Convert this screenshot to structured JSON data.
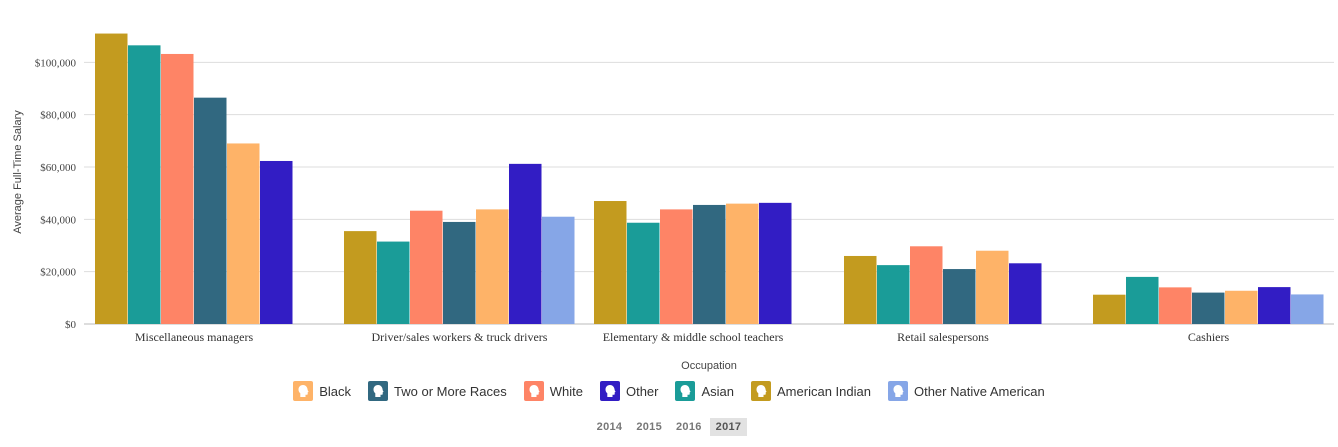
{
  "chart_data": {
    "type": "bar",
    "title": "",
    "xlabel": "Occupation",
    "ylabel": "Average Full-Time Salary",
    "ylim": [
      0,
      120000
    ],
    "yticks": [
      0,
      20000,
      40000,
      60000,
      80000,
      100000
    ],
    "ytick_labels": [
      "$0",
      "$20,000",
      "$40,000",
      "$60,000",
      "$80,000",
      "$100,000"
    ],
    "grid": true,
    "legend_position": "bottom-center",
    "categories": [
      "Miscellaneous managers",
      "Driver/sales workers & truck drivers",
      "Elementary & middle school teachers",
      "Retail salespersons",
      "Cashiers"
    ],
    "bar_order": [
      "American Indian",
      "Asian",
      "White",
      "Two or More Races",
      "Black",
      "Other",
      "Other Native American"
    ],
    "series": [
      {
        "name": "American Indian",
        "color": "#c39b1f",
        "values": [
          111000,
          35500,
          47000,
          26000,
          11200
        ]
      },
      {
        "name": "Asian",
        "color": "#1a9c98",
        "values": [
          106500,
          31500,
          38700,
          22500,
          18000
        ]
      },
      {
        "name": "White",
        "color": "#fe8466",
        "values": [
          103200,
          43300,
          43800,
          29700,
          14000
        ]
      },
      {
        "name": "Two or More Races",
        "color": "#316880",
        "values": [
          86500,
          39000,
          45500,
          21000,
          12000
        ]
      },
      {
        "name": "Black",
        "color": "#feb368",
        "values": [
          69000,
          43800,
          46000,
          28000,
          12700
        ]
      },
      {
        "name": "Other",
        "color": "#321dc4",
        "values": [
          62300,
          61200,
          46300,
          23200,
          14100
        ]
      },
      {
        "name": "Other Native American",
        "color": "#86a6e7",
        "values": [
          null,
          41000,
          null,
          null,
          11300
        ]
      }
    ]
  },
  "legend": {
    "items": [
      {
        "label": "Black",
        "color": "#feb368"
      },
      {
        "label": "Two or More Races",
        "color": "#316880"
      },
      {
        "label": "White",
        "color": "#fe8466"
      },
      {
        "label": "Other",
        "color": "#321dc4"
      },
      {
        "label": "Asian",
        "color": "#1a9c98"
      },
      {
        "label": "American Indian",
        "color": "#c39b1f"
      },
      {
        "label": "Other Native American",
        "color": "#86a6e7"
      }
    ],
    "icon": "person-head-icon"
  },
  "year_selector": {
    "years": [
      "2014",
      "2015",
      "2016",
      "2017"
    ],
    "selected": "2017"
  }
}
